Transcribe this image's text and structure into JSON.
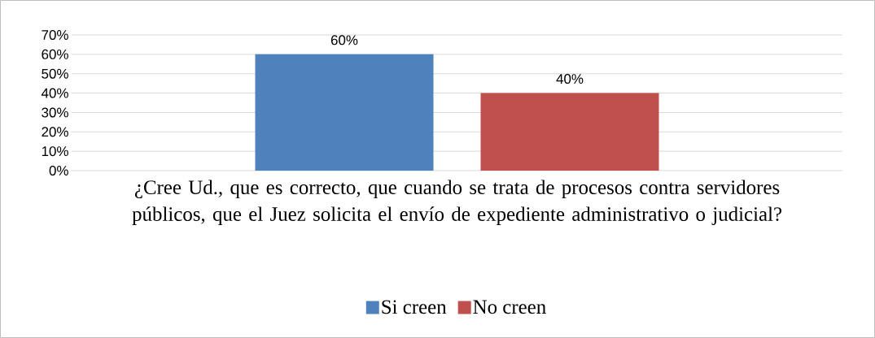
{
  "chart_data": {
    "type": "bar",
    "categories": [
      "¿Cree Ud., que es correcto, que cuando se trata de procesos contra servidores públicos, que el Juez solicita el envío de expediente administrativo o judicial?"
    ],
    "series": [
      {
        "name": "Si creen",
        "color": "#4f81bd",
        "values": [
          60
        ],
        "value_labels": [
          "60%"
        ]
      },
      {
        "name": "No creen",
        "color": "#c0504d",
        "values": [
          40
        ],
        "value_labels": [
          "40%"
        ]
      }
    ],
    "ylim": [
      0,
      70
    ],
    "yticks": [
      {
        "value": 0,
        "label": "0%"
      },
      {
        "value": 10,
        "label": "10%"
      },
      {
        "value": 20,
        "label": "20%"
      },
      {
        "value": 30,
        "label": "30%"
      },
      {
        "value": 40,
        "label": "40%"
      },
      {
        "value": 50,
        "label": "50%"
      },
      {
        "value": 60,
        "label": "60%"
      },
      {
        "value": 70,
        "label": "70%"
      }
    ],
    "grid": "y",
    "legend": "bottom"
  }
}
